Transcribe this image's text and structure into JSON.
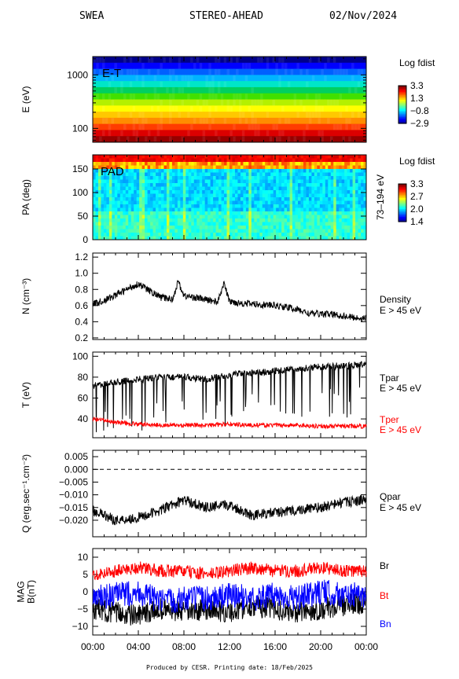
{
  "header": {
    "instrument": "SWEA",
    "spacecraft": "STEREO-AHEAD",
    "date": "02/Nov/2024"
  },
  "footer": {
    "text": "Produced by CESR.   Printing date: 18/Feb/2025"
  },
  "time_axis": {
    "ticks": [
      "00:00",
      "04:00",
      "08:00",
      "12:00",
      "16:00",
      "20:00",
      "00:00"
    ],
    "range_hours": [
      0,
      24
    ]
  },
  "chart_data": [
    {
      "type": "heatmap",
      "panel_label": "E-T",
      "ylabel": "E (eV)",
      "y_scale": "log",
      "yticks": [
        "1000",
        "100"
      ],
      "ylim": [
        55,
        2200
      ],
      "colorbar": {
        "title": "Log fdist",
        "ticks": [
          "3.3",
          "1.3",
          "−0.8",
          "−2.9"
        ],
        "range": [
          -2.9,
          3.3
        ]
      },
      "colors": [
        "#00008c",
        "#0000ff",
        "#0060ff",
        "#00b4ff",
        "#00e6c8",
        "#00d060",
        "#40e000",
        "#b4f000",
        "#ffff00",
        "#ffc800",
        "#ff8c00",
        "#ff3c00",
        "#dc0000",
        "#960000"
      ]
    },
    {
      "type": "heatmap",
      "panel_label": "PAD",
      "ylabel": "PA (deg)",
      "right_label": "73–194 eV",
      "yticks": [
        "150",
        "100",
        "50",
        "0"
      ],
      "ylim": [
        0,
        180
      ],
      "colorbar": {
        "title": "Log fdist",
        "ticks": [
          "3.3",
          "2.7",
          "2.0",
          "1.4"
        ],
        "range": [
          1.4,
          3.3
        ]
      }
    },
    {
      "type": "line",
      "ylabel": "N (cm⁻³)",
      "yticks": [
        "1.2",
        "1.0",
        "0.8",
        "0.6",
        "0.4",
        "0.2"
      ],
      "ylim": [
        0.18,
        1.25
      ],
      "series": [
        {
          "name": "Density",
          "sub": "E > 45 eV",
          "color": "#000000",
          "x": [
            0,
            1,
            2,
            3,
            4,
            5,
            6,
            7,
            7.5,
            8,
            9,
            10,
            11,
            11.5,
            12,
            13,
            14,
            15,
            16,
            17,
            18,
            19,
            20,
            21,
            22,
            23,
            24
          ],
          "y": [
            0.62,
            0.66,
            0.73,
            0.8,
            0.87,
            0.78,
            0.7,
            0.68,
            0.9,
            0.72,
            0.7,
            0.67,
            0.65,
            0.88,
            0.65,
            0.63,
            0.62,
            0.61,
            0.6,
            0.58,
            0.55,
            0.5,
            0.5,
            0.49,
            0.47,
            0.45,
            0.44
          ]
        }
      ]
    },
    {
      "type": "line",
      "ylabel": "T (eV)",
      "yticks": [
        "100",
        "80",
        "60",
        "40"
      ],
      "ylim": [
        22,
        104
      ],
      "series": [
        {
          "name": "Tpar",
          "sub": "E > 45 eV",
          "color": "#000000",
          "x": [
            0,
            2,
            4,
            6,
            8,
            10,
            12,
            14,
            16,
            18,
            20,
            22,
            24
          ],
          "y": [
            72,
            75,
            78,
            80,
            80,
            78,
            82,
            84,
            86,
            88,
            90,
            91,
            92
          ]
        },
        {
          "name": "Tper",
          "sub": "E > 45 eV",
          "color": "#ff0000",
          "x": [
            0,
            2,
            4,
            6,
            8,
            10,
            12,
            14,
            16,
            18,
            20,
            22,
            24
          ],
          "y": [
            40,
            37,
            35,
            34,
            34,
            34,
            35,
            34,
            34,
            34,
            33,
            33,
            33
          ]
        }
      ]
    },
    {
      "type": "line",
      "ylabel": "Q (erg.sec⁻¹.cm⁻²)",
      "yticks": [
        "0.005",
        "0.000",
        "−0.005",
        "−0.010",
        "−0.015",
        "−0.020"
      ],
      "ylim": [
        -0.0265,
        0.0075
      ],
      "series": [
        {
          "name": "Qpar",
          "sub": "E > 45 eV",
          "color": "#000000",
          "x": [
            0,
            2,
            4,
            6,
            8,
            10,
            12,
            14,
            16,
            18,
            20,
            22,
            24
          ],
          "y": [
            -0.016,
            -0.02,
            -0.019,
            -0.016,
            -0.012,
            -0.015,
            -0.014,
            -0.018,
            -0.017,
            -0.016,
            -0.015,
            -0.013,
            -0.012
          ]
        }
      ]
    },
    {
      "type": "line",
      "ylabel": "MAG\nB(nT)",
      "yticks": [
        "10",
        "5",
        "0",
        "−5",
        "−10"
      ],
      "ylim": [
        -12.5,
        12.5
      ],
      "series": [
        {
          "name": "Br",
          "color": "#000000",
          "x": [
            0,
            2,
            4,
            6,
            8,
            10,
            12,
            14,
            16,
            18,
            20,
            22,
            24
          ],
          "y": [
            -5,
            -6,
            -7,
            -5,
            -6,
            -5,
            -6,
            -4,
            -5,
            -6,
            -5,
            -4,
            -3
          ]
        },
        {
          "name": "Bt",
          "color": "#ff0000",
          "x": [
            0,
            2,
            4,
            6,
            8,
            10,
            12,
            14,
            16,
            18,
            20,
            22,
            24
          ],
          "y": [
            5,
            6,
            7,
            6,
            6,
            5,
            6,
            7,
            6,
            6,
            7,
            6,
            6
          ]
        },
        {
          "name": "Bn",
          "color": "#0000ff",
          "x": [
            0,
            2,
            4,
            6,
            8,
            10,
            12,
            14,
            16,
            18,
            20,
            22,
            24
          ],
          "y": [
            -2,
            -1,
            0,
            -3,
            -2,
            -2,
            -1,
            -2,
            -1,
            -2,
            0,
            -1,
            -1
          ]
        }
      ]
    }
  ]
}
